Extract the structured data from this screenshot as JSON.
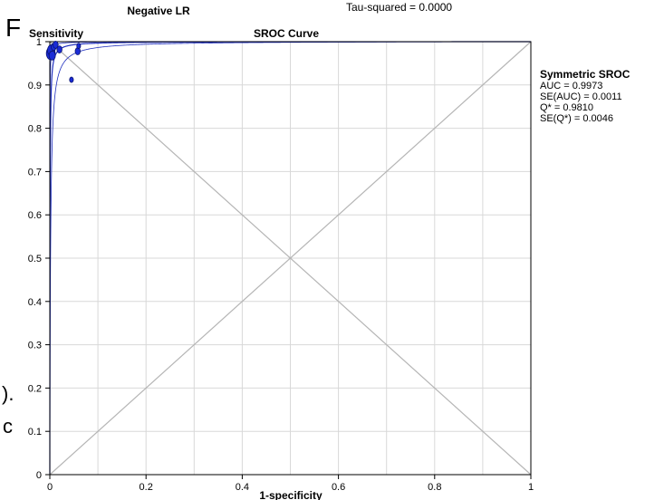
{
  "panel_letter": "F",
  "top_fragments": {
    "left_title": "Negative LR",
    "tau_squared": "Tau-squared = 0.0000"
  },
  "left_edge_fragments": [
    ").",
    "c"
  ],
  "chart_data": {
    "type": "scatter",
    "title": "SROC Curve",
    "xlabel": "1-specificity",
    "ylabel": "Sensitivity",
    "xlim": [
      0,
      1
    ],
    "ylim": [
      0,
      1
    ],
    "x_ticks": [
      "0",
      "0.2",
      "0.4",
      "0.6",
      "0.8",
      "1"
    ],
    "y_ticks": [
      "0",
      "0.1",
      "0.2",
      "0.3",
      "0.4",
      "0.5",
      "0.6",
      "0.7",
      "0.8",
      "0.9",
      "1"
    ],
    "grid": true,
    "colors": {
      "points": "#1a2bd6",
      "curve": "#1f2fbf",
      "diagonals": "#b5b5b5",
      "grid": "#d8d8d8"
    },
    "studies": [
      {
        "x": 0.002,
        "y": 0.973,
        "size": 7
      },
      {
        "x": 0.003,
        "y": 0.98,
        "size": 6
      },
      {
        "x": 0.005,
        "y": 0.968,
        "size": 5
      },
      {
        "x": 0.008,
        "y": 0.988,
        "size": 4
      },
      {
        "x": 0.012,
        "y": 0.993,
        "size": 4
      },
      {
        "x": 0.02,
        "y": 0.982,
        "size": 4
      },
      {
        "x": 0.058,
        "y": 0.978,
        "size": 4
      },
      {
        "x": 0.06,
        "y": 0.99,
        "size": 3
      },
      {
        "x": 0.045,
        "y": 0.912,
        "size": 3
      }
    ],
    "sroc": {
      "heading": "Symmetric SROC",
      "stats": [
        "AUC = 0.9973",
        "SE(AUC) = 0.0011",
        "Q* = 0.9810",
        "SE(Q*) = 0.0046"
      ]
    }
  }
}
